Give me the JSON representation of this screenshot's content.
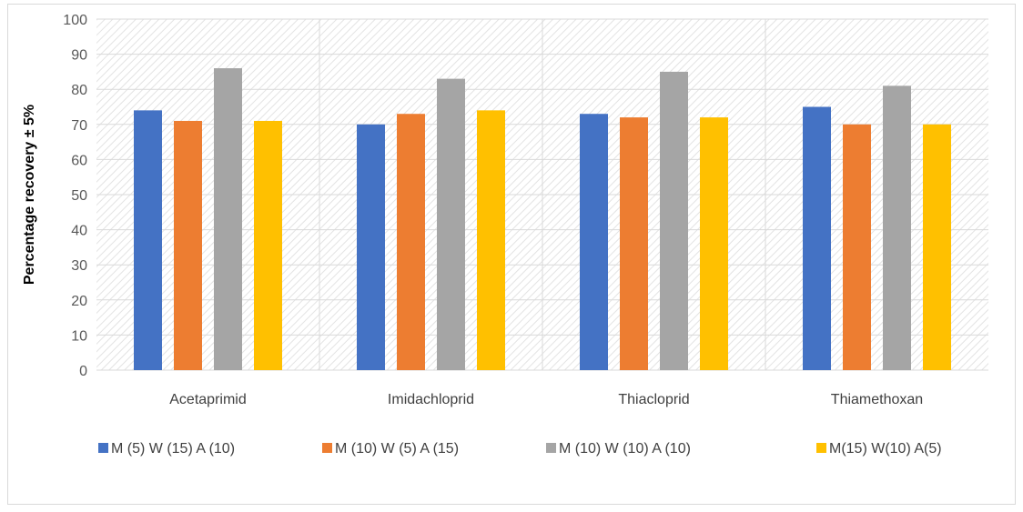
{
  "chart_data": {
    "type": "bar",
    "title": "",
    "xlabel": "",
    "ylabel": "Percentage recovery ± 5%",
    "ylim": [
      0,
      100
    ],
    "ytick_step": 10,
    "grid": true,
    "legend_position": "bottom",
    "categories": [
      "Acetaprimid",
      "Imidachloprid",
      "Thiacloprid",
      "Thiamethoxan"
    ],
    "series": [
      {
        "name": "M (5) W (15) A (10)",
        "color": "#4472c4",
        "values": [
          74,
          70,
          73,
          75
        ]
      },
      {
        "name": "M (10) W (5) A (15)",
        "color": "#ed7d31",
        "values": [
          71,
          73,
          72,
          70
        ]
      },
      {
        "name": "M (10) W (10) A (10)",
        "color": "#a5a5a5",
        "values": [
          86,
          83,
          85,
          81
        ]
      },
      {
        "name": "M(15) W(10) A(5)",
        "color": "#ffc000",
        "values": [
          71,
          74,
          72,
          70
        ]
      }
    ]
  }
}
